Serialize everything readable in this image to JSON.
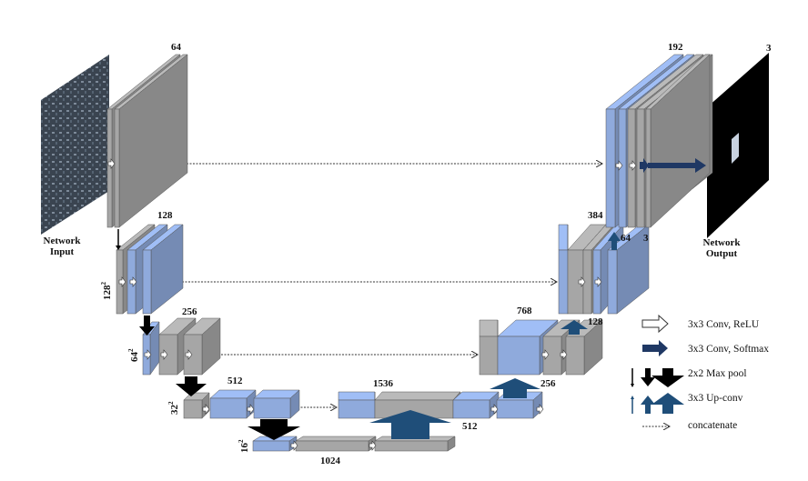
{
  "colors": {
    "blue": "#8faadc",
    "gray": "#a6a6a6",
    "dark_blue_arrow": "#1f4e79",
    "pool": "#000000",
    "output_bg": "#000000"
  },
  "input_label": [
    "Network",
    "Input"
  ],
  "output_label": [
    "Network",
    "Output"
  ],
  "channel_labels": {
    "enc1": "64",
    "enc2": "128",
    "enc3": "256",
    "enc4": "512",
    "bottleneck": "1024",
    "dec4": "1536",
    "dec4b": "512",
    "dec4c": "256",
    "dec3": "768",
    "dec3b": "128",
    "dec2": "384",
    "dec2b": "64",
    "dec2c": "3",
    "dec1": "192",
    "out": "3"
  },
  "size_labels": {
    "s128": "128",
    "s64": "64",
    "s32": "32",
    "s16": "16",
    "exp": "2"
  },
  "legend": [
    {
      "icon": "white-arrow-icon",
      "label": "3x3 Conv, ReLU"
    },
    {
      "icon": "dark-blue-arrow-icon",
      "label": "3x3 Conv, Softmax"
    },
    {
      "icon": "max-pool-arrow-icon",
      "label": "2x2 Max pool"
    },
    {
      "icon": "up-conv-arrow-icon",
      "label": "3x3 Up-conv"
    },
    {
      "icon": "dotted-arrow-icon",
      "label": "concatenate"
    }
  ]
}
